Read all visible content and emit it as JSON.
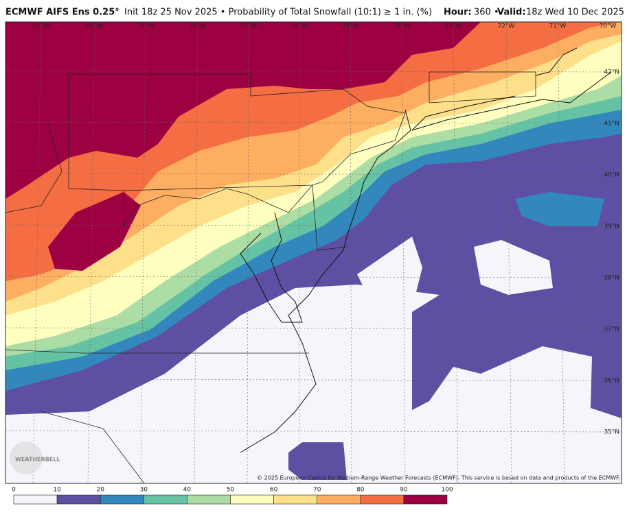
{
  "header": {
    "model": "ECMWF AIFS Ens 0.25°",
    "description": "Init 18z 25 Nov 2025 • Probability of Total Snowfall (10:1) ≥ 1 in. (%)",
    "hour_label": "Hour:",
    "hour": "360 •",
    "valid_label": "Valid:",
    "valid": "18z Wed 10 Dec 2025"
  },
  "map": {
    "lon_labels": [
      "81°W",
      "80°W",
      "79°W",
      "78°W",
      "77°W",
      "76°W",
      "75°W",
      "74°W",
      "73°W",
      "72°W",
      "71°W",
      "70°W"
    ],
    "lat_labels": [
      "42°N",
      "41°N",
      "40°N",
      "39°N",
      "38°N",
      "37°N",
      "36°N",
      "35°N"
    ],
    "logo": "WEATHERBELL",
    "copyright": "© 2025 European Centre for Medium-Range Weather Forecasts (ECMWF). This service is based on data and products of the ECMWF."
  },
  "colorbar": {
    "ticks": [
      0,
      10,
      20,
      30,
      40,
      50,
      60,
      70,
      80,
      90,
      100
    ],
    "colors": [
      "#f4f6fb",
      "#5e4fa2",
      "#3288bd",
      "#66c2a5",
      "#abdda4",
      "#ffffbf",
      "#fee08b",
      "#fdae61",
      "#f46d43",
      "#9e0142"
    ]
  }
}
